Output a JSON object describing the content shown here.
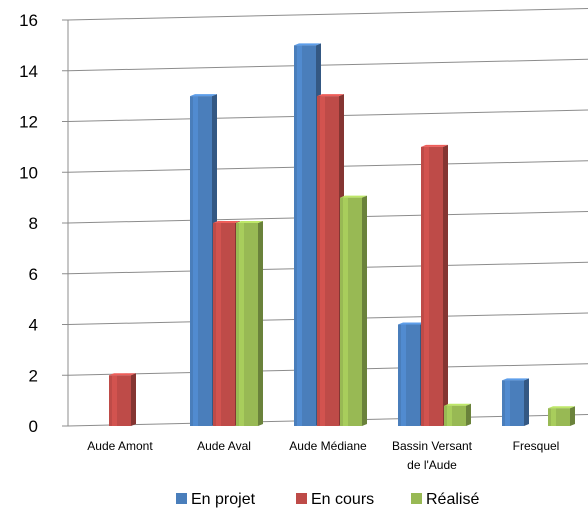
{
  "chart_data": {
    "type": "bar",
    "title": "",
    "xlabel": "",
    "ylabel": "",
    "ylim": [
      0,
      16
    ],
    "yticks": [
      0,
      2,
      4,
      6,
      8,
      10,
      12,
      14,
      16
    ],
    "grid": true,
    "legend_position": "bottom",
    "categories": [
      [
        "Aude Amont"
      ],
      [
        "Aude Aval"
      ],
      [
        "Aude Médiane"
      ],
      [
        "Bassin Versant",
        "de l'Aude"
      ],
      [
        "Fresquel"
      ]
    ],
    "series": [
      {
        "name": "En projet",
        "color": "#4a7ebb",
        "values": [
          0,
          13,
          15,
          4,
          1.8
        ]
      },
      {
        "name": "En cours",
        "color": "#be4b48",
        "values": [
          2,
          8,
          13,
          11,
          0
        ]
      },
      {
        "name": "Réalisé",
        "color": "#98b954",
        "values": [
          0,
          8,
          9,
          0.8,
          0.7
        ]
      }
    ]
  }
}
